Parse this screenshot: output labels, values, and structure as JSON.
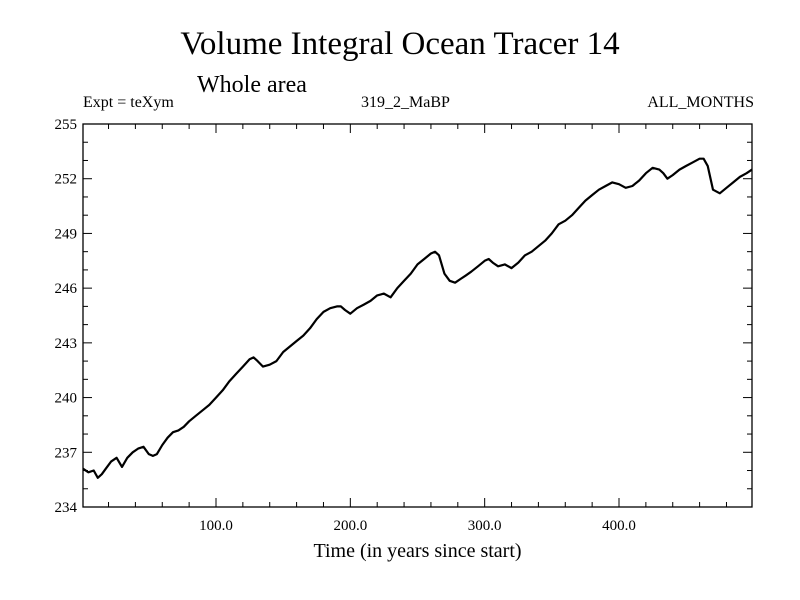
{
  "header": {
    "title": "Volume Integral Ocean Tracer 14",
    "subtitle": "Whole area",
    "expt": "Expt = teXym",
    "run_id": "319_2_MaBP",
    "months": "ALL_MONTHS"
  },
  "chart_data": {
    "type": "line",
    "title": "Volume Integral Ocean Tracer 14",
    "subtitle": "Whole area",
    "xlabel": "Time (in years since start)",
    "ylabel": "",
    "xlim": [
      1,
      499
    ],
    "ylim": [
      234,
      255
    ],
    "xticks": [
      100,
      200,
      300,
      400
    ],
    "xtick_labels": [
      "100.0",
      "200.0",
      "300.0",
      "400.0"
    ],
    "yticks": [
      234,
      237,
      240,
      243,
      246,
      249,
      252,
      255
    ],
    "ytick_labels": [
      "234",
      "237",
      "240",
      "243",
      "246",
      "249",
      "252",
      "255"
    ],
    "grid": false,
    "series": [
      {
        "color": "#000000",
        "x": [
          1,
          5,
          9,
          12,
          15,
          18,
          22,
          26,
          30,
          34,
          38,
          42,
          46,
          50,
          53,
          56,
          60,
          64,
          68,
          72,
          76,
          80,
          85,
          90,
          95,
          100,
          105,
          110,
          115,
          120,
          125,
          128,
          131,
          135,
          140,
          145,
          150,
          155,
          160,
          165,
          170,
          175,
          180,
          185,
          190,
          193,
          196,
          200,
          205,
          210,
          215,
          220,
          225,
          230,
          235,
          240,
          245,
          250,
          255,
          260,
          263,
          266,
          270,
          274,
          278,
          282,
          286,
          290,
          295,
          300,
          303,
          306,
          310,
          315,
          320,
          325,
          330,
          335,
          340,
          345,
          350,
          355,
          360,
          365,
          370,
          375,
          380,
          385,
          390,
          395,
          400,
          405,
          410,
          415,
          420,
          425,
          430,
          433,
          436,
          440,
          445,
          450,
          455,
          460,
          463,
          466,
          470,
          475,
          480,
          485,
          490,
          495,
          499
        ],
        "y": [
          236.1,
          235.9,
          236.0,
          235.6,
          235.8,
          236.1,
          236.5,
          236.7,
          236.2,
          236.7,
          237.0,
          237.2,
          237.3,
          236.9,
          236.8,
          236.9,
          237.4,
          237.8,
          238.1,
          238.2,
          238.4,
          238.7,
          239.0,
          239.3,
          239.6,
          240.0,
          240.4,
          240.9,
          241.3,
          241.7,
          242.1,
          242.2,
          242.0,
          241.7,
          241.8,
          242.0,
          242.5,
          242.8,
          243.1,
          243.4,
          243.8,
          244.3,
          244.7,
          244.9,
          245.0,
          245.0,
          244.8,
          244.6,
          244.9,
          245.1,
          245.3,
          245.6,
          245.7,
          245.5,
          246.0,
          246.4,
          246.8,
          247.3,
          247.6,
          247.9,
          248.0,
          247.8,
          246.8,
          246.4,
          246.3,
          246.5,
          246.7,
          246.9,
          247.2,
          247.5,
          247.6,
          247.4,
          247.2,
          247.3,
          247.1,
          247.4,
          247.8,
          248.0,
          248.3,
          248.6,
          249.0,
          249.5,
          249.7,
          250.0,
          250.4,
          250.8,
          251.1,
          251.4,
          251.6,
          251.8,
          251.7,
          251.5,
          251.6,
          251.9,
          252.3,
          252.6,
          252.5,
          252.3,
          252.0,
          252.2,
          252.5,
          252.7,
          252.9,
          253.1,
          253.1,
          252.7,
          251.4,
          251.2,
          251.5,
          251.8,
          252.1,
          252.3,
          252.5
        ]
      }
    ]
  }
}
